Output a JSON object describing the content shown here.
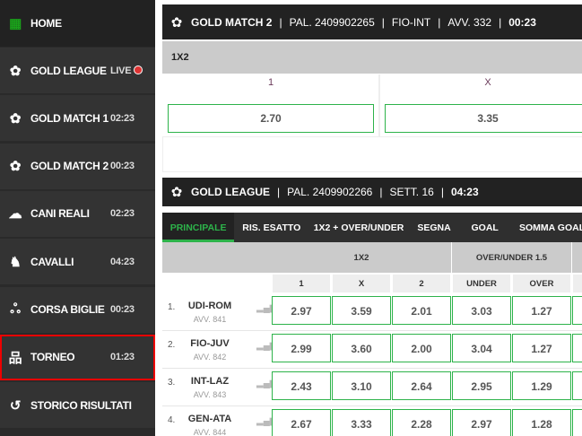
{
  "sidebar": {
    "items": [
      {
        "label": "HOME",
        "time": "",
        "icon": "grid-icon"
      },
      {
        "label": "GOLD LEAGUE",
        "time": "LIVE",
        "icon": "soccer-ball-icon"
      },
      {
        "label": "GOLD MATCH 1",
        "time": "02:23",
        "icon": "soccer-ball-icon"
      },
      {
        "label": "GOLD MATCH 2",
        "time": "00:23",
        "icon": "soccer-ball-icon"
      },
      {
        "label": "CANI REALI",
        "time": "02:23",
        "icon": "dog-icon"
      },
      {
        "label": "CAVALLI",
        "time": "04:23",
        "icon": "horse-icon"
      },
      {
        "label": "CORSA BIGLIE",
        "time": "00:23",
        "icon": "marbles-icon"
      },
      {
        "label": "TORNEO",
        "time": "01:23",
        "icon": "bracket-icon",
        "selected": true
      },
      {
        "label": "STORICO RISULTATI",
        "time": "",
        "icon": "history-icon"
      }
    ]
  },
  "match": {
    "name": "GOLD MATCH 2",
    "pal": "PAL. 2409902265",
    "teams": "FIO-INT",
    "avv": "AVV. 332",
    "time": "00:23",
    "market": "1X2",
    "outcomes": [
      {
        "label": "1",
        "odd": "2.70"
      },
      {
        "label": "X",
        "odd": "3.35"
      }
    ]
  },
  "league": {
    "name": "GOLD LEAGUE",
    "pal": "PAL. 2409902266",
    "sett": "SETT. 16",
    "time": "04:23",
    "tabs": [
      "PRINCIPALE",
      "RIS. ESATTO",
      "1X2 + OVER/UNDER",
      "SEGNA",
      "GOAL",
      "SOMMA GOAL"
    ],
    "groups": [
      "1X2",
      "OVER/UNDER 1.5"
    ],
    "cols": [
      "1",
      "X",
      "2",
      "UNDER",
      "OVER"
    ],
    "rows": [
      {
        "n": "1.",
        "match": "UDI-ROM",
        "avv": "AVV. 841",
        "odds": [
          "2.97",
          "3.59",
          "2.01",
          "3.03",
          "1.27"
        ]
      },
      {
        "n": "2.",
        "match": "FIO-JUV",
        "avv": "AVV. 842",
        "odds": [
          "2.99",
          "3.60",
          "2.00",
          "3.04",
          "1.27"
        ]
      },
      {
        "n": "3.",
        "match": "INT-LAZ",
        "avv": "AVV. 843",
        "odds": [
          "2.43",
          "3.10",
          "2.64",
          "2.95",
          "1.29"
        ]
      },
      {
        "n": "4.",
        "match": "GEN-ATA",
        "avv": "AVV. 844",
        "odds": [
          "2.67",
          "3.33",
          "2.28",
          "2.97",
          "1.28"
        ]
      }
    ]
  },
  "colors": {
    "accent": "#2db34a",
    "live": "#d33333",
    "selected_outline": "#ee0000"
  }
}
